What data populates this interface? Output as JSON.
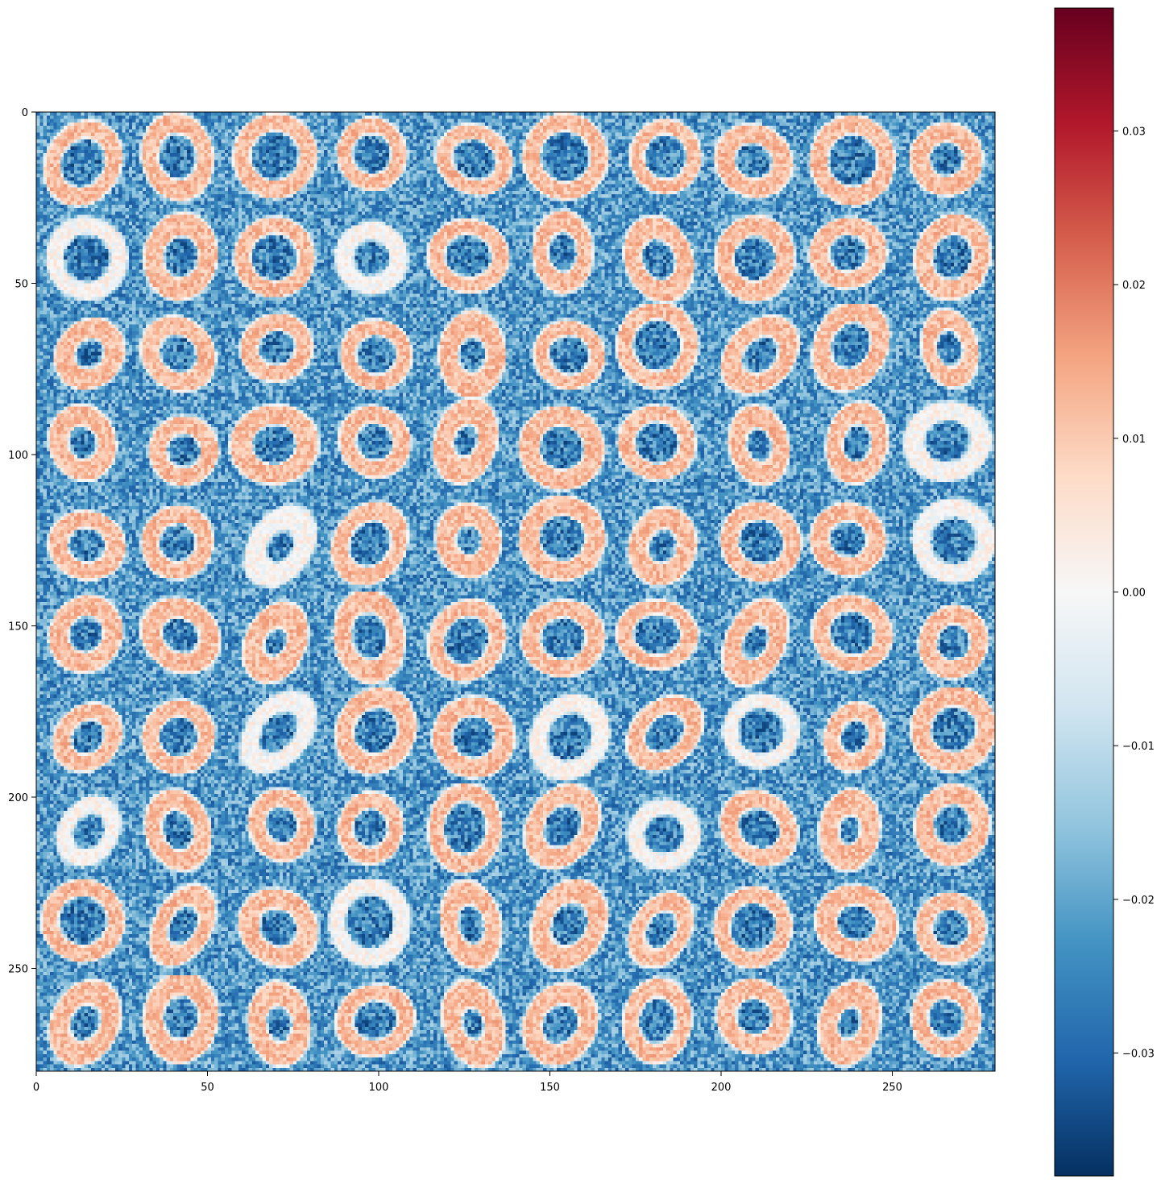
{
  "chart_data": {
    "type": "heatmap",
    "title": "",
    "xlabel": "",
    "ylabel": "",
    "grid": false,
    "colormap": "RdBu_r",
    "colormap_stops": [
      "#053061",
      "#2166ac",
      "#4393c3",
      "#92c5de",
      "#d1e5f0",
      "#f7f7f7",
      "#fddbc7",
      "#f4a582",
      "#d6604d",
      "#b2182b",
      "#67001f"
    ],
    "image_size": [
      280,
      280
    ],
    "xlim": [
      0,
      280
    ],
    "ylim": [
      280,
      0
    ],
    "x_ticks": [
      0,
      50,
      100,
      150,
      200,
      250
    ],
    "y_ticks": [
      0,
      50,
      100,
      150,
      200,
      250
    ],
    "x_tick_labels": [
      "0",
      "50",
      "100",
      "150",
      "200",
      "250"
    ],
    "y_tick_labels": [
      "0",
      "50",
      "100",
      "150",
      "200",
      "250"
    ],
    "colorbar": {
      "range": [
        -0.038,
        0.038
      ],
      "ticks": [
        -0.03,
        -0.02,
        -0.01,
        0.0,
        0.01,
        0.02,
        0.03
      ],
      "tick_labels": [
        "−0.03",
        "−0.02",
        "−0.01",
        "0.00",
        "0.01",
        "0.02",
        "0.03"
      ]
    },
    "grid_layout": {
      "rows": 10,
      "cols": 10,
      "cell_size": 28
    },
    "background_value": -0.022,
    "stroke_value": 0.012,
    "noise_amplitude": 0.01
  }
}
